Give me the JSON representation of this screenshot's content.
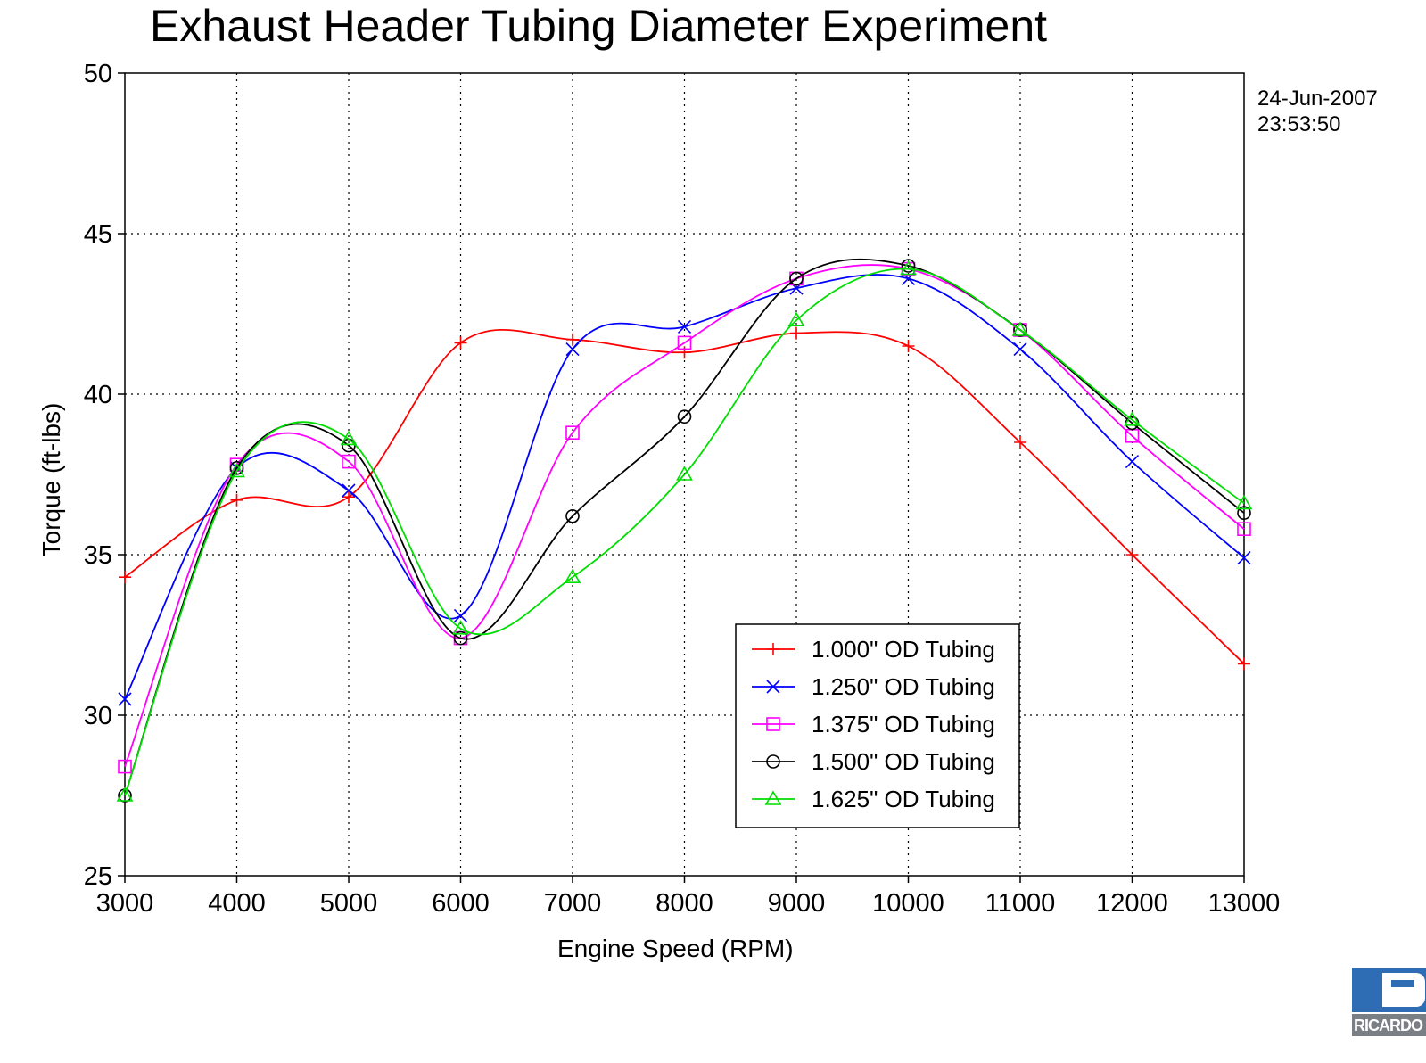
{
  "chart_data": {
    "type": "line",
    "title": "Exhaust Header Tubing Diameter Experiment",
    "xlabel": "Engine Speed (RPM)",
    "ylabel": "Torque (ft-lbs)",
    "timestamp": [
      "24-Jun-2007",
      "23:53:50"
    ],
    "xlim": [
      3000,
      13000
    ],
    "ylim": [
      25,
      50
    ],
    "xticks": [
      3000,
      4000,
      5000,
      6000,
      7000,
      8000,
      9000,
      10000,
      11000,
      12000,
      13000
    ],
    "yticks": [
      25,
      30,
      35,
      40,
      45,
      50
    ],
    "grid": true,
    "legend_position": "bottom-center",
    "x": [
      3000,
      4000,
      5000,
      6000,
      7000,
      8000,
      9000,
      10000,
      11000,
      12000,
      13000
    ],
    "series": [
      {
        "name": "1.000\" OD Tubing",
        "color": "#ff0000",
        "marker": "plus",
        "values": [
          34.3,
          36.7,
          36.8,
          41.6,
          41.7,
          41.3,
          41.9,
          41.5,
          38.5,
          35.0,
          31.6
        ]
      },
      {
        "name": "1.250\" OD Tubing",
        "color": "#0000ff",
        "marker": "x",
        "values": [
          30.5,
          37.7,
          37.0,
          33.1,
          41.4,
          42.1,
          43.3,
          43.6,
          41.4,
          37.9,
          34.9
        ]
      },
      {
        "name": "1.375\" OD Tubing",
        "color": "#ff00ff",
        "marker": "square",
        "values": [
          28.4,
          37.8,
          37.9,
          32.4,
          38.8,
          41.6,
          43.6,
          43.9,
          42.0,
          38.7,
          35.8
        ]
      },
      {
        "name": "1.500\" OD Tubing",
        "color": "#000000",
        "marker": "circle",
        "values": [
          27.5,
          37.7,
          38.4,
          32.4,
          36.2,
          39.3,
          43.6,
          44.0,
          42.0,
          39.1,
          36.3
        ]
      },
      {
        "name": "1.625\" OD Tubing",
        "color": "#00dd00",
        "marker": "triangle",
        "values": [
          27.5,
          37.6,
          38.6,
          32.7,
          34.3,
          37.5,
          42.3,
          43.9,
          42.0,
          39.2,
          36.6
        ]
      }
    ]
  },
  "logo": {
    "text": "RICARDO"
  }
}
